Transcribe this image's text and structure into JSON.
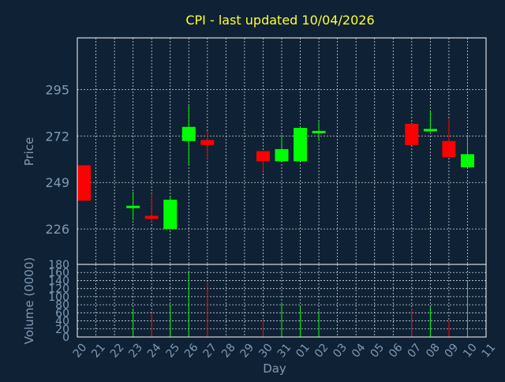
{
  "title": "CPI - last updated 10/04/2026",
  "colors": {
    "background": "#0f2134",
    "title": "#ffff33",
    "axis_text": "#7f9ab5",
    "frame": "#ffffff",
    "grid": "#cfd6dd",
    "up": "#00ff00",
    "down": "#ff0000"
  },
  "chart_data": {
    "type": "candlestick",
    "xlabel": "Day",
    "ylabel": "Price",
    "volume_label": "Volume (0000)",
    "x_ticks": [
      "20",
      "21",
      "22",
      "23",
      "24",
      "25",
      "26",
      "27",
      "28",
      "29",
      "30",
      "31",
      "01",
      "02",
      "03",
      "04",
      "05",
      "06",
      "07",
      "08",
      "09",
      "10",
      "11"
    ],
    "price_ticks": [
      "295",
      "272",
      "249",
      "226"
    ],
    "price_range": [
      208.5,
      320.5
    ],
    "volume_ticks": [
      "180",
      "160",
      "140",
      "120",
      "100",
      "80",
      "60",
      "40",
      "20",
      "0"
    ],
    "volume_range": [
      0,
      180
    ],
    "grid": true,
    "candles": [
      {
        "day": "20",
        "open": 257.5,
        "high": 257.5,
        "low": 240,
        "close": 240,
        "volume": 0
      },
      {
        "day": "23",
        "open": 237,
        "high": 244.5,
        "low": 230.5,
        "close": 237.5,
        "volume": 70
      },
      {
        "day": "24",
        "open": 232.5,
        "high": 243.5,
        "low": 229.5,
        "close": 231,
        "volume": 60
      },
      {
        "day": "25",
        "open": 226,
        "high": 242.5,
        "low": 226,
        "close": 240.5,
        "volume": 80
      },
      {
        "day": "26",
        "open": 269.5,
        "high": 287,
        "low": 257.5,
        "close": 276.5,
        "volume": 160
      },
      {
        "day": "27",
        "open": 270,
        "high": 274.5,
        "low": 260.5,
        "close": 267.5,
        "volume": 135
      },
      {
        "day": "30",
        "open": 264.5,
        "high": 264.5,
        "low": 254.5,
        "close": 259.5,
        "volume": 45
      },
      {
        "day": "31",
        "open": 259.5,
        "high": 272.5,
        "low": 259.5,
        "close": 265.5,
        "volume": 85
      },
      {
        "day": "01",
        "open": 259.5,
        "high": 276.5,
        "low": 259.5,
        "close": 276,
        "volume": 75
      },
      {
        "day": "02",
        "open": 273.5,
        "high": 279,
        "low": 269.5,
        "close": 274.5,
        "volume": 65
      },
      {
        "day": "07",
        "open": 278,
        "high": 278,
        "low": 267.5,
        "close": 267.5,
        "volume": 70
      },
      {
        "day": "08",
        "open": 274.5,
        "high": 284.5,
        "low": 274,
        "close": 275.5,
        "volume": 75
      },
      {
        "day": "09",
        "open": 269.5,
        "high": 280.5,
        "low": 261.5,
        "close": 261.5,
        "volume": 40
      },
      {
        "day": "10",
        "open": 256.5,
        "high": 272.5,
        "low": 256.5,
        "close": 263,
        "volume": 140
      }
    ]
  }
}
